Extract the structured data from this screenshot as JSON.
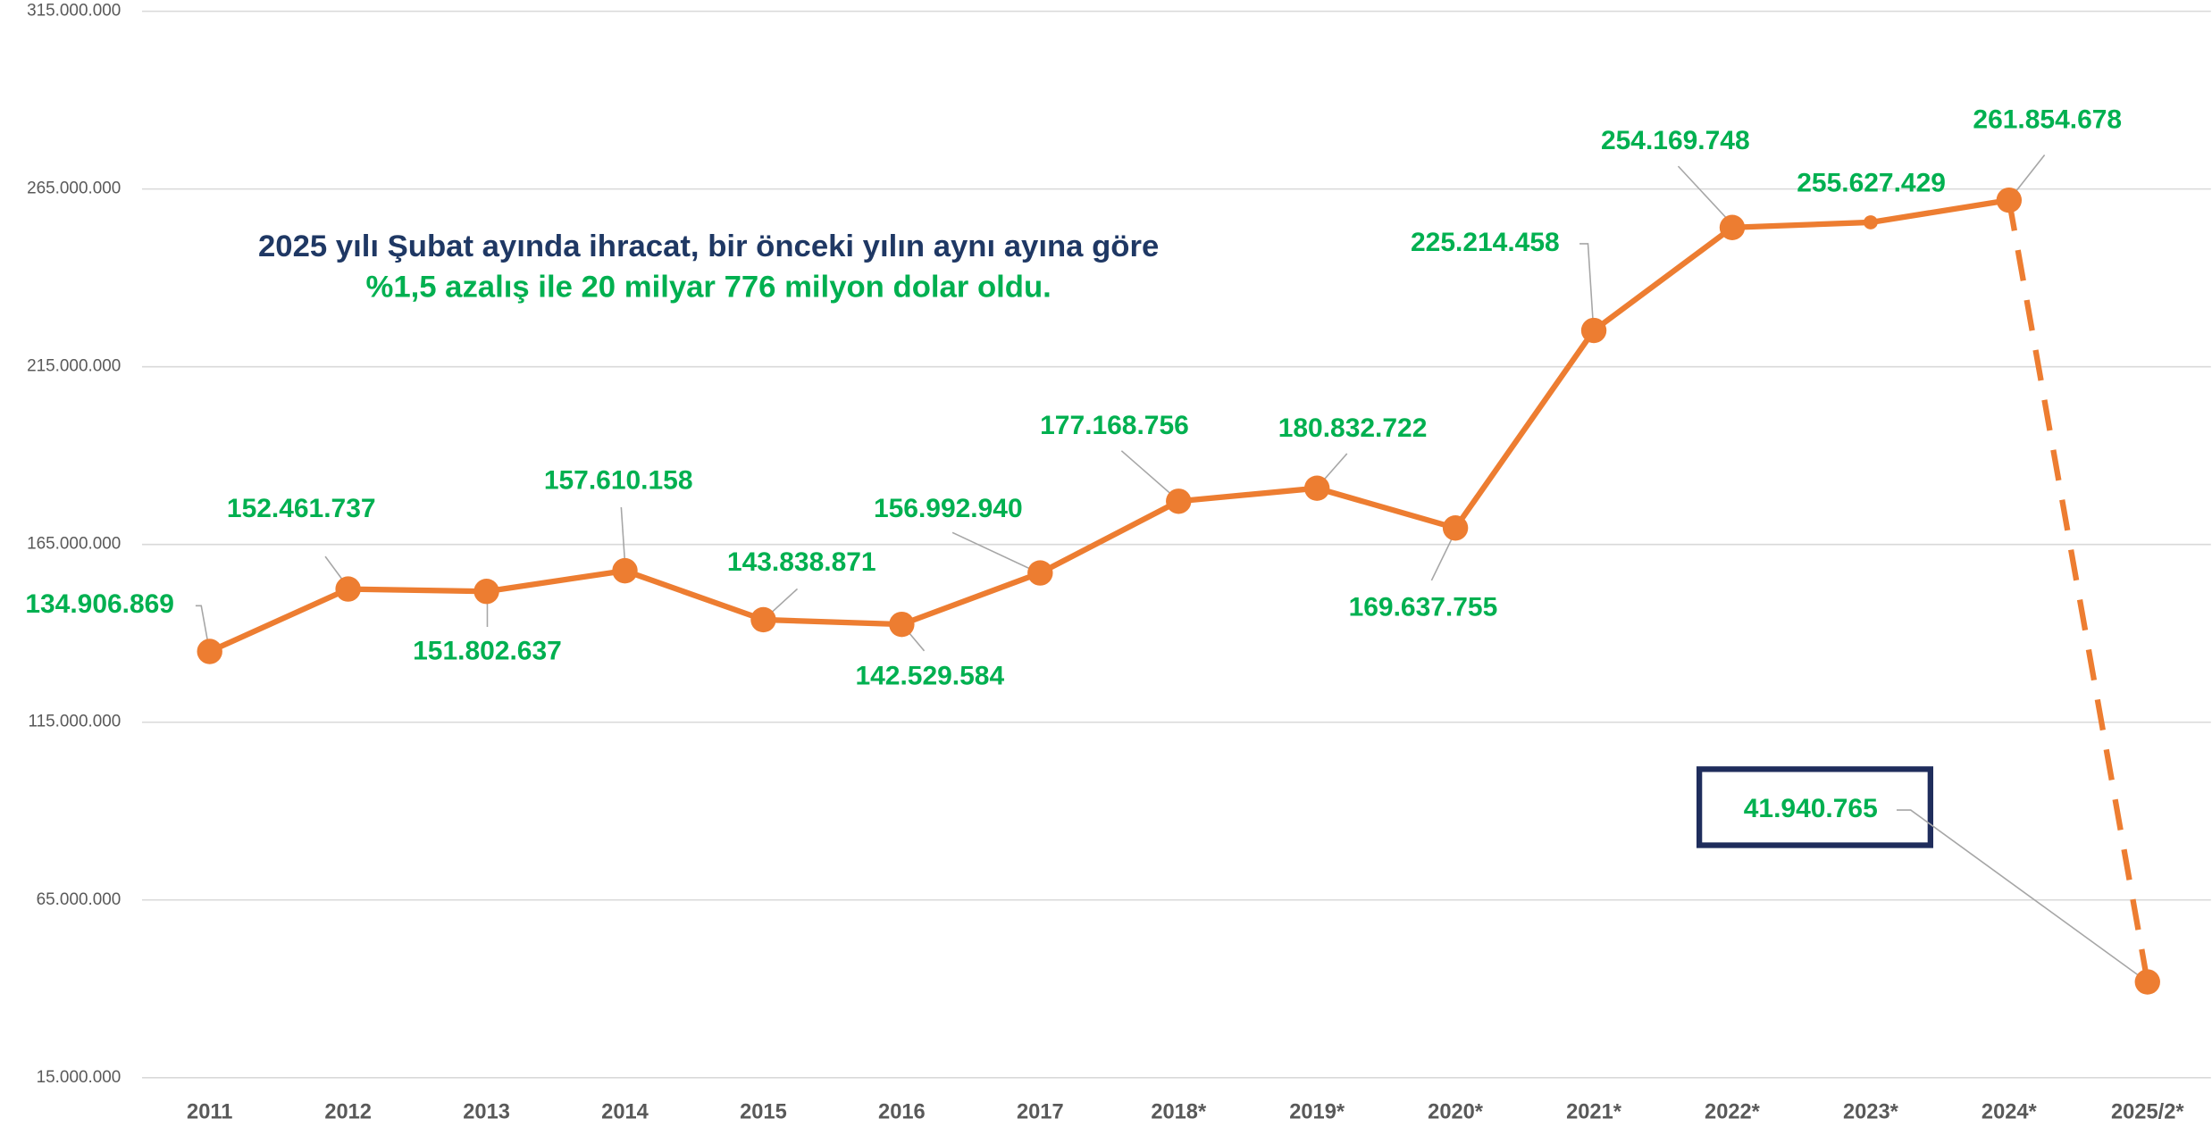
{
  "chart_data": {
    "type": "line",
    "annotation_lines": [
      "2025 yılı Şubat ayında ihracat, bir önceki yılın aynı ayına göre",
      "%1,5 azalış ile 20 milyar 776 milyon dolar oldu."
    ],
    "categories": [
      "2011",
      "2012",
      "2013",
      "2014",
      "2015",
      "2016",
      "2017",
      "2018*",
      "2019*",
      "2020*",
      "2021*",
      "2022*",
      "2023*",
      "2024*",
      "2025/2*"
    ],
    "series": [
      {
        "color": "#ed7d31",
        "values": [
          134906869,
          152461737,
          151802637,
          157610158,
          143838871,
          142529584,
          156992940,
          177168756,
          180832722,
          169637755,
          225214458,
          254169748,
          255627429,
          261854678,
          41940765
        ],
        "value_labels": [
          "134.906.869",
          "152.461.737",
          "151.802.637",
          "157.610.158",
          "143.838.871",
          "142.529.584",
          "156.992.940",
          "177.168.756",
          "180.832.722",
          "169.637.755",
          "225.214.458",
          "254.169.748",
          "255.627.429",
          "261.854.678",
          "41.940.765"
        ]
      }
    ],
    "ylim": [
      15000000,
      315000000
    ],
    "yticks": [
      {
        "value": 15000000,
        "label": "15.000.000"
      },
      {
        "value": 65000000,
        "label": "65.000.000"
      },
      {
        "value": 115000000,
        "label": "115.000.000"
      },
      {
        "value": 165000000,
        "label": "165.000.000"
      },
      {
        "value": 215000000,
        "label": "215.000.000"
      },
      {
        "value": 265000000,
        "label": "265.000.000"
      },
      {
        "value": 315000000,
        "label": "315.000.000"
      }
    ],
    "grid": true
  }
}
